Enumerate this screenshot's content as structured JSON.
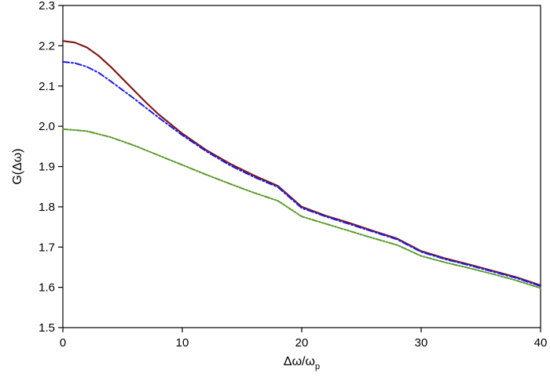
{
  "chart_data": {
    "type": "line",
    "title": "",
    "xlabel": "Δω/ω",
    "xlabel_subscript": "p",
    "ylabel": "G(Δω)",
    "xlim": [
      0,
      40
    ],
    "ylim": [
      1.5,
      2.3
    ],
    "xticks": [
      0,
      10,
      20,
      30,
      40
    ],
    "yticks": [
      1.5,
      1.6,
      1.7,
      1.8,
      1.9,
      2.0,
      2.1,
      2.2,
      2.3
    ],
    "xtick_labels": [
      "0",
      "10",
      "20",
      "30",
      "40"
    ],
    "ytick_labels": [
      "1.5",
      "1.6",
      "1.7",
      "1.8",
      "1.9",
      "2.0",
      "2.1",
      "2.2",
      "2.3"
    ],
    "grid": false,
    "legend": "none",
    "series": [
      {
        "color": "#e60000",
        "dash": "solid",
        "x": [
          0,
          1,
          2,
          3,
          4,
          5,
          6,
          7,
          8,
          10,
          12,
          14,
          16,
          18,
          20,
          22,
          24,
          26,
          28,
          30,
          32,
          34,
          36,
          38,
          40
        ],
        "y": [
          2.212,
          2.208,
          2.196,
          2.175,
          2.148,
          2.118,
          2.088,
          2.058,
          2.03,
          1.982,
          1.941,
          1.907,
          1.878,
          1.852,
          1.8,
          1.778,
          1.76,
          1.74,
          1.721,
          1.69,
          1.672,
          1.657,
          1.641,
          1.625,
          1.605
        ]
      },
      {
        "color": "#7a1a1a",
        "dash": "solid",
        "x": [
          0,
          1,
          2,
          3,
          4,
          5,
          6,
          7,
          8,
          10,
          12,
          14,
          16,
          18,
          20,
          22,
          24,
          26,
          28,
          30,
          32,
          34,
          36,
          38,
          40
        ],
        "y": [
          2.212,
          2.208,
          2.196,
          2.175,
          2.148,
          2.118,
          2.088,
          2.058,
          2.03,
          1.982,
          1.941,
          1.907,
          1.878,
          1.852,
          1.8,
          1.778,
          1.76,
          1.74,
          1.721,
          1.69,
          1.672,
          1.657,
          1.641,
          1.625,
          1.605
        ]
      },
      {
        "color": "#1a1aee",
        "dash": "dashdot",
        "x": [
          0,
          1,
          2,
          3,
          4,
          5,
          6,
          7,
          8,
          10,
          12,
          14,
          16,
          18,
          20,
          22,
          24,
          26,
          28,
          30,
          32,
          34,
          36,
          38,
          40
        ],
        "y": [
          2.16,
          2.157,
          2.148,
          2.133,
          2.112,
          2.09,
          2.068,
          2.045,
          2.022,
          1.978,
          1.938,
          1.903,
          1.874,
          1.849,
          1.797,
          1.776,
          1.757,
          1.738,
          1.719,
          1.688,
          1.67,
          1.655,
          1.639,
          1.623,
          1.603
        ]
      },
      {
        "color": "#5a9a2a",
        "dash": "dashdotdot",
        "x": [
          0,
          2,
          4,
          6,
          8,
          10,
          12,
          14,
          16,
          18,
          20,
          22,
          24,
          26,
          28,
          30,
          32,
          34,
          36,
          38,
          40
        ],
        "y": [
          1.993,
          1.988,
          1.973,
          1.952,
          1.928,
          1.904,
          1.88,
          1.857,
          1.835,
          1.815,
          1.776,
          1.758,
          1.74,
          1.722,
          1.705,
          1.678,
          1.662,
          1.648,
          1.633,
          1.617,
          1.598
        ]
      }
    ]
  }
}
